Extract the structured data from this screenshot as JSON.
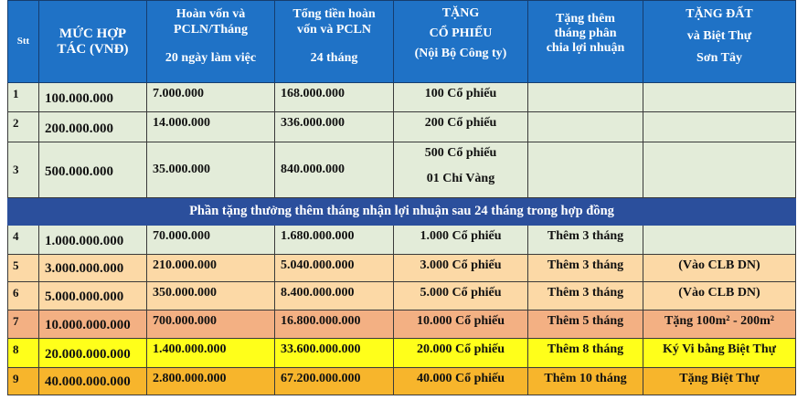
{
  "headers": {
    "stt": "Stt",
    "muc_hop_tac": [
      "MỨC HỢP",
      "TÁC (VNĐ)"
    ],
    "hoan_von": [
      "Hoàn vốn và",
      "PCLN/Tháng",
      "20 ngày làm việc"
    ],
    "tong_tien": [
      "Tổng tiền hoàn",
      "vốn và PCLN",
      "24 tháng"
    ],
    "tang_co_phieu": [
      "TẶNG",
      "CỔ PHIẾU",
      "(Nội Bộ Công ty)"
    ],
    "tang_them": [
      "Tặng thêm",
      "tháng phân",
      "chia lợi nhuận"
    ],
    "tang_dat": [
      "TẶNG ĐẤT",
      "và Biệt Thự",
      "Sơn Tây"
    ]
  },
  "rows_a": [
    {
      "stt": "1",
      "amount": "100.000.000",
      "monthly": "7.000.000",
      "total": "168.000.000",
      "shares": "100 Cổ phiếu",
      "extra": "",
      "gift": ""
    },
    {
      "stt": "2",
      "amount": "200.000.000",
      "monthly": "14.000.000",
      "total": "336.000.000",
      "shares": "200 Cổ phiếu",
      "extra": "",
      "gift": ""
    },
    {
      "stt": "3",
      "amount": "500.000.000",
      "monthly": "35.000.000",
      "total": "840.000.000",
      "shares": "500 Cổ phiếu",
      "shares2": "01 Chỉ Vàng",
      "extra": "",
      "gift": ""
    }
  ],
  "banner": "Phần tặng thưởng thêm tháng nhận lợi nhuận sau 24 tháng trong hợp đồng",
  "rows_b": [
    {
      "stt": "4",
      "amount": "1.000.000.000",
      "monthly": "70.000.000",
      "total": "1.680.000.000",
      "shares": "1.000 Cổ phiếu",
      "extra": "Thêm 3 tháng",
      "gift": ""
    },
    {
      "stt": "5",
      "amount": "3.000.000.000",
      "monthly": "210.000.000",
      "total": "5.040.000.000",
      "shares": "3.000 Cổ phiếu",
      "extra": "Thêm 3 tháng",
      "gift": "(Vào CLB DN)"
    },
    {
      "stt": "6",
      "amount": "5.000.000.000",
      "monthly": "350.000.000",
      "total": "8.400.000.000",
      "shares": "5.000 Cổ phiếu",
      "extra": "Thêm 3 tháng",
      "gift": "(Vào CLB DN)"
    },
    {
      "stt": "7",
      "amount": "10.000.000.000",
      "monthly": "700.000.000",
      "total": "16.800.000.000",
      "shares": "10.000 Cổ phiếu",
      "extra": "Thêm 5 tháng",
      "gift": "Tặng 100m² - 200m²"
    },
    {
      "stt": "8",
      "amount": "20.000.000.000",
      "monthly": "1.400.000.000",
      "total": "33.600.000.000",
      "shares": "20.000 Cổ phiếu",
      "extra": "Thêm 8 tháng",
      "gift": "Ký Vi bằng Biệt Thự"
    },
    {
      "stt": "9",
      "amount": "40.000.000.000",
      "monthly": "2.800.000.000",
      "total": "67.200.000.000",
      "shares": "40.000 Cổ phiếu",
      "extra": "Thêm 10 tháng",
      "gift": "Tặng Biệt Thự"
    }
  ],
  "colors": {
    "header": "#1f72c6",
    "banner": "#2b4f9c",
    "green": "#e3ecd9",
    "peach": "#fcd9a6",
    "salmon": "#f3b083",
    "yellow": "#ffff1a",
    "orange": "#f7b52c"
  }
}
